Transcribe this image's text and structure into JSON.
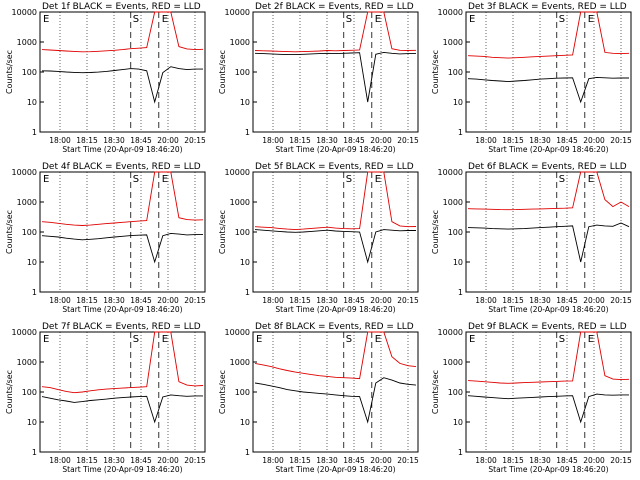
{
  "figure": {
    "colors": {
      "events": "#000000",
      "lld": "#e00000",
      "marker": "#000000",
      "background": "#ffffff"
    }
  },
  "chart_data": [
    {
      "type": "line",
      "title": "Det 1f BLACK = Events, RED = LLD",
      "xlabel": "Start Time (20-Apr-09 18:46:20)",
      "ylabel": "Counts/sec",
      "x_ticks": [
        "18:00",
        "18:15",
        "18:30",
        "18:45",
        "20:00",
        "20:15"
      ],
      "y_ticks": [
        "1",
        "10",
        "100",
        "1000",
        "10000"
      ],
      "ylim": [
        1,
        10000
      ],
      "y_scale": "log",
      "grid": "vertical dotted",
      "markers": [
        "E",
        "S",
        "E"
      ],
      "series": [
        {
          "name": "Events",
          "color": "#000000",
          "values": [
            110,
            108,
            105,
            100,
            97,
            95,
            96,
            99,
            105,
            112,
            120,
            130,
            125,
            110,
            10,
            95,
            150,
            130,
            120,
            125,
            125
          ]
        },
        {
          "name": "LLD",
          "color": "#e00000",
          "values": [
            560,
            540,
            520,
            500,
            485,
            470,
            475,
            490,
            510,
            530,
            560,
            600,
            620,
            650,
            10000,
            10000,
            10000,
            700,
            590,
            560,
            570
          ]
        }
      ]
    },
    {
      "type": "line",
      "title": "Det 2f BLACK = Events, RED = LLD",
      "xlabel": "Start Time (20-Apr-09 18:46:20)",
      "ylabel": "Counts/sec",
      "x_ticks": [
        "18:00",
        "18:15",
        "18:30",
        "18:45",
        "20:00",
        "20:15"
      ],
      "y_ticks": [
        "1",
        "10",
        "100",
        "1000",
        "10000"
      ],
      "ylim": [
        1,
        10000
      ],
      "y_scale": "log",
      "grid": "vertical dotted",
      "markers": [
        "S",
        "E"
      ],
      "series": [
        {
          "name": "Events",
          "color": "#000000",
          "values": [
            420,
            410,
            400,
            390,
            380,
            380,
            390,
            400,
            410,
            420,
            410,
            420,
            430,
            440,
            10,
            390,
            450,
            420,
            400,
            410,
            410
          ]
        },
        {
          "name": "LLD",
          "color": "#e00000",
          "values": [
            520,
            510,
            500,
            490,
            480,
            470,
            480,
            490,
            500,
            520,
            510,
            520,
            530,
            540,
            10000,
            10000,
            10000,
            600,
            530,
            520,
            530
          ]
        }
      ]
    },
    {
      "type": "line",
      "title": "Det 3f BLACK = Events, RED = LLD",
      "xlabel": "Start Time (20-Apr-09 18:46:20)",
      "ylabel": "Counts/sec",
      "x_ticks": [
        "18:00",
        "18:15",
        "18:30",
        "18:45",
        "20:00",
        "20:15"
      ],
      "y_ticks": [
        "1",
        "10",
        "100",
        "1000",
        "10000"
      ],
      "ylim": [
        1,
        10000
      ],
      "y_scale": "log",
      "grid": "vertical dotted",
      "markers": [
        "E",
        "S",
        "E"
      ],
      "series": [
        {
          "name": "Events",
          "color": "#000000",
          "values": [
            60,
            58,
            55,
            52,
            50,
            48,
            50,
            52,
            55,
            58,
            60,
            62,
            63,
            64,
            10,
            60,
            66,
            64,
            62,
            63,
            63
          ]
        },
        {
          "name": "LLD",
          "color": "#e00000",
          "values": [
            350,
            340,
            330,
            310,
            300,
            290,
            300,
            310,
            320,
            330,
            340,
            350,
            360,
            370,
            10000,
            10000,
            10000,
            450,
            420,
            410,
            420
          ]
        }
      ]
    },
    {
      "type": "line",
      "title": "Det 4f BLACK = Events, RED = LLD",
      "xlabel": "Start Time (20-Apr-09 18:46:20)",
      "ylabel": "Counts/sec",
      "x_ticks": [
        "18:00",
        "18:15",
        "18:30",
        "18:45",
        "20:00",
        "20:15"
      ],
      "y_ticks": [
        "1",
        "10",
        "100",
        "1000",
        "10000"
      ],
      "ylim": [
        1,
        10000
      ],
      "y_scale": "log",
      "grid": "vertical dotted",
      "markers": [
        "E",
        "S",
        "E"
      ],
      "series": [
        {
          "name": "Events",
          "color": "#000000",
          "values": [
            75,
            72,
            68,
            62,
            58,
            55,
            57,
            60,
            64,
            68,
            72,
            76,
            78,
            80,
            10,
            75,
            90,
            85,
            80,
            82,
            82
          ]
        },
        {
          "name": "LLD",
          "color": "#e00000",
          "values": [
            220,
            210,
            195,
            180,
            170,
            165,
            170,
            180,
            190,
            200,
            210,
            220,
            230,
            240,
            10000,
            10000,
            10000,
            300,
            260,
            250,
            255
          ]
        }
      ]
    },
    {
      "type": "line",
      "title": "Det 5f BLACK = Events, RED = LLD",
      "xlabel": "Start Time (20-Apr-09 18:46:20)",
      "ylabel": "Counts/sec",
      "x_ticks": [
        "18:00",
        "18:15",
        "18:30",
        "18:45",
        "20:00",
        "20:15"
      ],
      "y_ticks": [
        "1",
        "10",
        "100",
        "1000",
        "10000"
      ],
      "ylim": [
        1,
        10000
      ],
      "y_scale": "log",
      "grid": "vertical dotted",
      "markers": [
        "S",
        "E"
      ],
      "series": [
        {
          "name": "Events",
          "color": "#000000",
          "values": [
            120,
            115,
            110,
            105,
            100,
            98,
            100,
            105,
            110,
            115,
            108,
            105,
            102,
            100,
            10,
            100,
            120,
            115,
            110,
            112,
            112
          ]
        },
        {
          "name": "LLD",
          "color": "#e00000",
          "values": [
            150,
            145,
            140,
            132,
            125,
            120,
            125,
            132,
            138,
            145,
            135,
            130,
            128,
            130,
            10000,
            10000,
            10000,
            220,
            160,
            150,
            152
          ]
        }
      ]
    },
    {
      "type": "line",
      "title": "Det 6f BLACK = Events, RED = LLD",
      "xlabel": "Start Time (20-Apr-09 18:46:20)",
      "ylabel": "Counts/sec",
      "x_ticks": [
        "18:00",
        "18:15",
        "18:30",
        "18:45",
        "20:00",
        "20:15"
      ],
      "y_ticks": [
        "1",
        "10",
        "100",
        "1000",
        "10000"
      ],
      "ylim": [
        1,
        10000
      ],
      "y_scale": "log",
      "grid": "vertical dotted",
      "markers": [
        "S",
        "E"
      ],
      "series": [
        {
          "name": "Events",
          "color": "#000000",
          "values": [
            140,
            138,
            135,
            130,
            128,
            125,
            128,
            130,
            135,
            140,
            145,
            150,
            155,
            160,
            10,
            150,
            170,
            160,
            155,
            200,
            150
          ]
        },
        {
          "name": "LLD",
          "color": "#e00000",
          "values": [
            600,
            590,
            580,
            570,
            560,
            555,
            560,
            570,
            580,
            590,
            600,
            610,
            620,
            640,
            10000,
            10000,
            10000,
            1200,
            700,
            1000,
            700
          ]
        }
      ]
    },
    {
      "type": "line",
      "title": "Det 7f BLACK = Events, RED = LLD",
      "xlabel": "Start Time (20-Apr-09 18:46:20)",
      "ylabel": "Counts/sec",
      "x_ticks": [
        "18:00",
        "18:15",
        "18:30",
        "18:45",
        "20:00",
        "20:15"
      ],
      "y_ticks": [
        "1",
        "10",
        "100",
        "1000",
        "10000"
      ],
      "ylim": [
        1,
        10000
      ],
      "y_scale": "log",
      "grid": "vertical dotted",
      "markers": [
        "E",
        "S",
        "E"
      ],
      "series": [
        {
          "name": "Events",
          "color": "#000000",
          "values": [
            70,
            62,
            55,
            50,
            45,
            48,
            52,
            55,
            58,
            62,
            65,
            68,
            70,
            72,
            10,
            68,
            80,
            75,
            72,
            74,
            74
          ]
        },
        {
          "name": "LLD",
          "color": "#e00000",
          "values": [
            150,
            140,
            120,
            105,
            95,
            100,
            110,
            118,
            125,
            130,
            135,
            140,
            145,
            150,
            10000,
            10000,
            10000,
            220,
            170,
            160,
            165
          ]
        }
      ]
    },
    {
      "type": "line",
      "title": "Det 8f BLACK = Events, RED = LLD",
      "xlabel": "Start Time (20-Apr-09 18:46:20)",
      "ylabel": "Counts/sec",
      "x_ticks": [
        "18:00",
        "18:15",
        "18:30",
        "18:45",
        "20:00",
        "20:15"
      ],
      "y_ticks": [
        "1",
        "10",
        "100",
        "1000",
        "10000"
      ],
      "ylim": [
        1,
        10000
      ],
      "y_scale": "log",
      "grid": "vertical dotted",
      "markers": [
        "E",
        "S",
        "E"
      ],
      "series": [
        {
          "name": "Events",
          "color": "#000000",
          "values": [
            200,
            180,
            160,
            140,
            120,
            110,
            100,
            95,
            90,
            85,
            80,
            75,
            72,
            70,
            10,
            200,
            300,
            250,
            200,
            180,
            170
          ]
        },
        {
          "name": "LLD",
          "color": "#e00000",
          "values": [
            900,
            800,
            700,
            600,
            520,
            460,
            420,
            380,
            350,
            330,
            310,
            300,
            290,
            280,
            10000,
            10000,
            10000,
            1500,
            900,
            750,
            700
          ]
        }
      ]
    },
    {
      "type": "line",
      "title": "Det 9f BLACK = Events, RED = LLD",
      "xlabel": "Start Time (20-Apr-09 18:46:20)",
      "ylabel": "Counts/sec",
      "x_ticks": [
        "18:00",
        "18:15",
        "18:30",
        "18:45",
        "20:00",
        "20:15"
      ],
      "y_ticks": [
        "1",
        "10",
        "100",
        "1000",
        "10000"
      ],
      "ylim": [
        1,
        10000
      ],
      "y_scale": "log",
      "grid": "vertical dotted",
      "markers": [
        "E",
        "S",
        "E"
      ],
      "series": [
        {
          "name": "Events",
          "color": "#000000",
          "values": [
            75,
            72,
            68,
            65,
            62,
            60,
            62,
            64,
            66,
            68,
            70,
            72,
            74,
            75,
            10,
            70,
            85,
            80,
            78,
            80,
            80
          ]
        },
        {
          "name": "LLD",
          "color": "#e00000",
          "values": [
            240,
            230,
            220,
            210,
            200,
            195,
            200,
            205,
            210,
            215,
            220,
            225,
            230,
            235,
            10000,
            10000,
            10000,
            350,
            270,
            260,
            265
          ]
        }
      ]
    }
  ]
}
